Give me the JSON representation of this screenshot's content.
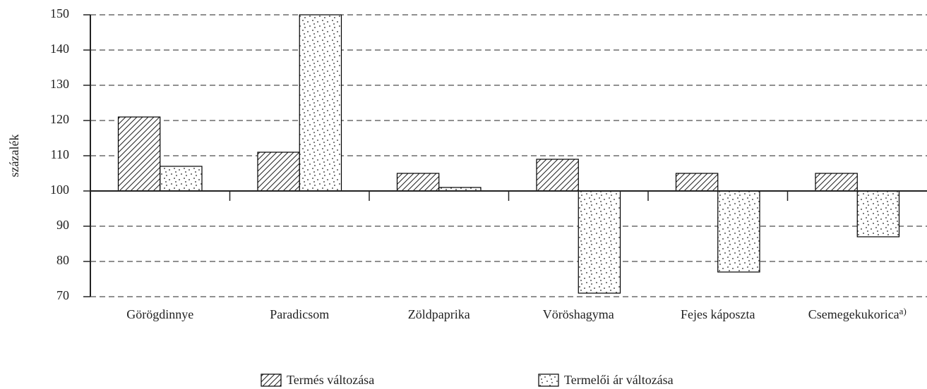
{
  "chart_data": {
    "type": "bar",
    "y_label": "százalék",
    "categories": [
      "Görögdinnye",
      "Paradicsom",
      "Zöldpaprika",
      "Vöröshagyma",
      "Fejes káposzta",
      "Csemegekukorica"
    ],
    "category_superscripts": [
      null,
      null,
      null,
      null,
      null,
      "a)"
    ],
    "series": [
      {
        "name": "Termés változása",
        "color": "#000000",
        "pattern": "hatch",
        "values": [
          121,
          111,
          105,
          109,
          105,
          105
        ]
      },
      {
        "name": "Termelői ár változása",
        "color": "#000000",
        "pattern": "dots",
        "values": [
          107,
          150,
          101,
          71,
          77,
          87
        ]
      }
    ],
    "baseline": 100,
    "ylim": [
      70,
      150
    ],
    "yticks": [
      70,
      80,
      90,
      100,
      110,
      120,
      130,
      140,
      150
    ],
    "grid": true,
    "legend": "bottom"
  }
}
